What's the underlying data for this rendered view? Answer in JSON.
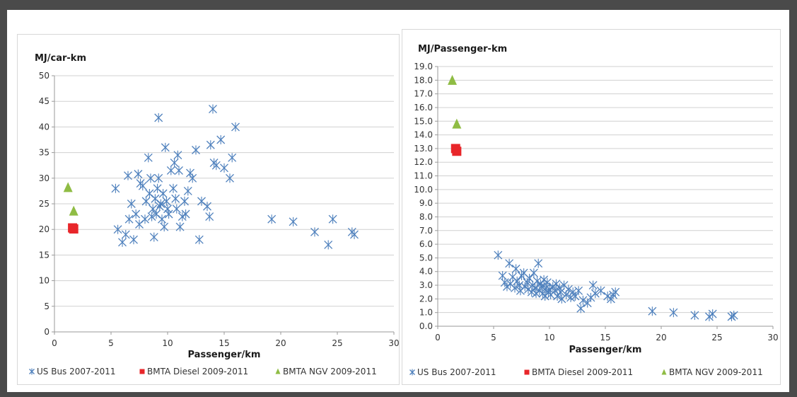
{
  "colors": {
    "us_bus": "#4f81bd",
    "bmta_diesel": "#e8262a",
    "bmta_ngv": "#8fbc44",
    "grid": "#d0d0d0"
  },
  "legend": [
    "US Bus 2007-2011",
    "BMTA Diesel 2009-2011",
    "BMTA NGV 2009-2011"
  ],
  "chart_data": [
    {
      "type": "scatter",
      "ylabel": "MJ/car-km",
      "xlabel": "Passenger/km",
      "xlim": [
        0,
        30
      ],
      "ylim": [
        0,
        50
      ],
      "x_ticks": [
        "0",
        "5",
        "10",
        "15",
        "20",
        "25",
        "30"
      ],
      "y_ticks": [
        "0",
        "5",
        "10",
        "15",
        "20",
        "25",
        "30",
        "35",
        "40",
        "45",
        "50"
      ],
      "grid": "horizontal",
      "legend_position": "bottom",
      "series": [
        {
          "name": "US Bus 2007-2011",
          "marker": "x",
          "points": [
            [
              5.4,
              28
            ],
            [
              5.6,
              20
            ],
            [
              6,
              17.5
            ],
            [
              6.3,
              19
            ],
            [
              6.6,
              22
            ],
            [
              6.5,
              30.5
            ],
            [
              6.8,
              25
            ],
            [
              7,
              18
            ],
            [
              7.2,
              23
            ],
            [
              7.4,
              30.8
            ],
            [
              7.6,
              29
            ],
            [
              7.8,
              28.5
            ],
            [
              7.5,
              21
            ],
            [
              8,
              22
            ],
            [
              8.1,
              25.5
            ],
            [
              8.3,
              34
            ],
            [
              8.4,
              27
            ],
            [
              8.5,
              30
            ],
            [
              8.6,
              22.5
            ],
            [
              8.7,
              24
            ],
            [
              8.8,
              18.5
            ],
            [
              8.9,
              26
            ],
            [
              9,
              23
            ],
            [
              9.1,
              28
            ],
            [
              9.2,
              41.8
            ],
            [
              9.2,
              30
            ],
            [
              9.3,
              24.5
            ],
            [
              9.4,
              25
            ],
            [
              9.5,
              22
            ],
            [
              9.6,
              27
            ],
            [
              9.7,
              20.5
            ],
            [
              9.8,
              36
            ],
            [
              9.9,
              25.5
            ],
            [
              10,
              24
            ],
            [
              10.1,
              23
            ],
            [
              10.3,
              31.5
            ],
            [
              10.5,
              28
            ],
            [
              10.6,
              33
            ],
            [
              10.7,
              26
            ],
            [
              10.8,
              24
            ],
            [
              10.9,
              34.5
            ],
            [
              11,
              31.5
            ],
            [
              11.1,
              20.5
            ],
            [
              11.3,
              22.5
            ],
            [
              11.5,
              25.5
            ],
            [
              11.6,
              23
            ],
            [
              11.8,
              27.5
            ],
            [
              12,
              31
            ],
            [
              12.2,
              30
            ],
            [
              12.5,
              35.5
            ],
            [
              12.8,
              18
            ],
            [
              13,
              25.5
            ],
            [
              13.5,
              24.5
            ],
            [
              13.7,
              22.5
            ],
            [
              13.8,
              36.5
            ],
            [
              14,
              43.5
            ],
            [
              14.1,
              33
            ],
            [
              14.3,
              32.5
            ],
            [
              14.7,
              37.5
            ],
            [
              15,
              32
            ],
            [
              15.5,
              30
            ],
            [
              15.7,
              34
            ],
            [
              16,
              40
            ],
            [
              19.2,
              22
            ],
            [
              21.1,
              21.5
            ],
            [
              23,
              19.5
            ],
            [
              24.2,
              17
            ],
            [
              24.6,
              22
            ],
            [
              26.3,
              19.5
            ],
            [
              26.5,
              19
            ]
          ]
        },
        {
          "name": "BMTA Diesel 2009-2011",
          "marker": "square",
          "points": [
            [
              1.6,
              20.3
            ],
            [
              1.7,
              20.1
            ]
          ]
        },
        {
          "name": "BMTA NGV 2009-2011",
          "marker": "triangle",
          "points": [
            [
              1.2,
              28.2
            ],
            [
              1.7,
              23.6
            ]
          ]
        }
      ]
    },
    {
      "type": "scatter",
      "ylabel": "MJ/Passenger-km",
      "xlabel": "Passenger/km",
      "xlim": [
        0,
        30
      ],
      "ylim": [
        0,
        19
      ],
      "x_ticks": [
        "0",
        "5",
        "10",
        "15",
        "20",
        "25",
        "30"
      ],
      "y_ticks": [
        "0.0",
        "1.0",
        "2.0",
        "3.0",
        "4.0",
        "5.0",
        "6.0",
        "7.0",
        "8.0",
        "9.0",
        "10.0",
        "11.0",
        "12.0",
        "13.0",
        "14.0",
        "15.0",
        "16.0",
        "17.0",
        "18.0",
        "19.0"
      ],
      "grid": "horizontal",
      "legend_position": "bottom",
      "series": [
        {
          "name": "US Bus 2007-2011",
          "marker": "x",
          "points": [
            [
              5.4,
              5.2
            ],
            [
              5.8,
              3.7
            ],
            [
              6,
              3.2
            ],
            [
              6.2,
              2.9
            ],
            [
              6.4,
              4.6
            ],
            [
              6.5,
              3.1
            ],
            [
              6.7,
              3.6
            ],
            [
              6.9,
              2.8
            ],
            [
              7,
              4.2
            ],
            [
              7.1,
              3.3
            ],
            [
              7.3,
              3
            ],
            [
              7.4,
              2.6
            ],
            [
              7.5,
              3.7
            ],
            [
              7.7,
              3.9
            ],
            [
              7.8,
              2.9
            ],
            [
              8,
              3.2
            ],
            [
              8.1,
              2.7
            ],
            [
              8.2,
              3.5
            ],
            [
              8.4,
              2.5
            ],
            [
              8.5,
              3
            ],
            [
              8.6,
              3.9
            ],
            [
              8.7,
              2.8
            ],
            [
              8.8,
              2.4
            ],
            [
              8.9,
              3.3
            ],
            [
              9,
              4.6
            ],
            [
              9.1,
              2.6
            ],
            [
              9.2,
              3.1
            ],
            [
              9.3,
              2.9
            ],
            [
              9.4,
              2.4
            ],
            [
              9.5,
              3.4
            ],
            [
              9.6,
              2.2
            ],
            [
              9.7,
              2.8
            ],
            [
              9.8,
              3.2
            ],
            [
              9.9,
              2.5
            ],
            [
              10,
              2.7
            ],
            [
              10.1,
              2.3
            ],
            [
              10.3,
              2.9
            ],
            [
              10.5,
              2.6
            ],
            [
              10.6,
              3.1
            ],
            [
              10.7,
              2.2
            ],
            [
              10.9,
              2.8
            ],
            [
              11,
              2.5
            ],
            [
              11.1,
              2
            ],
            [
              11.3,
              3
            ],
            [
              11.5,
              2.3
            ],
            [
              11.7,
              2.7
            ],
            [
              11.9,
              2.1
            ],
            [
              12.1,
              2.5
            ],
            [
              12.3,
              2.2
            ],
            [
              12.6,
              2.6
            ],
            [
              12.8,
              1.3
            ],
            [
              13,
              1.9
            ],
            [
              13.4,
              1.7
            ],
            [
              13.7,
              2.1
            ],
            [
              13.9,
              3
            ],
            [
              14.1,
              2.4
            ],
            [
              14.6,
              2.6
            ],
            [
              15.2,
              2.2
            ],
            [
              15.5,
              2
            ],
            [
              15.7,
              2.3
            ],
            [
              15.9,
              2.5
            ],
            [
              19.2,
              1.1
            ],
            [
              21.1,
              1
            ],
            [
              23,
              0.8
            ],
            [
              24.3,
              0.7
            ],
            [
              24.6,
              0.9
            ],
            [
              26.3,
              0.7
            ],
            [
              26.5,
              0.8
            ]
          ]
        },
        {
          "name": "BMTA Diesel 2009-2011",
          "marker": "square",
          "points": [
            [
              1.6,
              13
            ],
            [
              1.7,
              12.8
            ]
          ]
        },
        {
          "name": "BMTA NGV 2009-2011",
          "marker": "triangle",
          "points": [
            [
              1.3,
              18
            ],
            [
              1.7,
              14.8
            ]
          ]
        }
      ]
    }
  ]
}
